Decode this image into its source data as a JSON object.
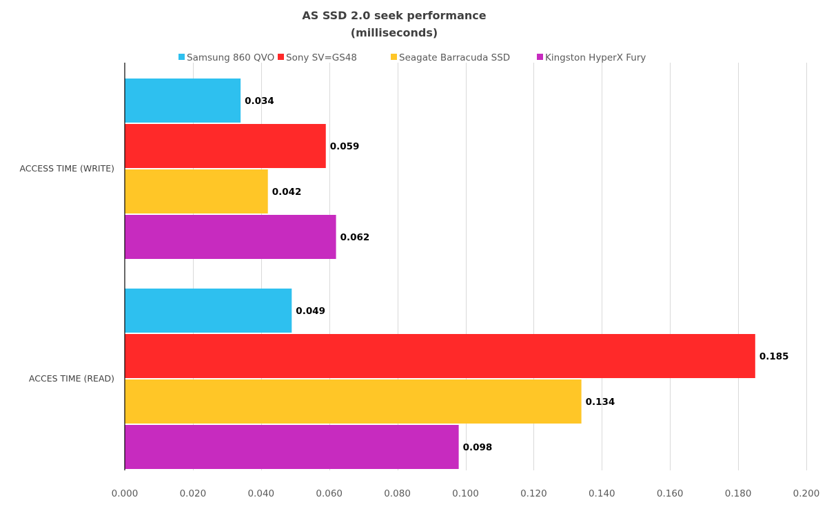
{
  "chart_data": {
    "type": "bar",
    "orientation": "horizontal",
    "title_lines": [
      "AS SSD 2.0 seek performance",
      "(milliseconds)"
    ],
    "categories": [
      "ACCESS TIME (WRITE)",
      "ACCES TIME (READ)"
    ],
    "series": [
      {
        "name": "Samsung 860 QVO",
        "color": "#2ec0ef",
        "values": [
          0.034,
          0.049
        ],
        "labels": [
          "0.034",
          "0.049"
        ]
      },
      {
        "name": "Sony SV=GS48",
        "color": "#ff2929",
        "values": [
          0.059,
          0.185
        ],
        "labels": [
          "0.059",
          "0.185"
        ]
      },
      {
        "name": "Seagate Barracuda SSD",
        "color": "#ffc627",
        "values": [
          0.042,
          0.134
        ],
        "labels": [
          "0.042",
          "0.134"
        ]
      },
      {
        "name": "Kingston HyperX Fury",
        "color": "#c72bbf",
        "values": [
          0.062,
          0.098
        ],
        "labels": [
          "0.062",
          "0.098"
        ]
      }
    ],
    "xlim": [
      0,
      0.2
    ],
    "x_ticks": [
      "0.000",
      "0.020",
      "0.040",
      "0.060",
      "0.080",
      "0.100",
      "0.120",
      "0.140",
      "0.160",
      "0.180",
      "0.200"
    ],
    "x_tick_values": [
      0,
      0.02,
      0.04,
      0.06,
      0.08,
      0.1,
      0.12,
      0.14,
      0.16,
      0.18,
      0.2
    ],
    "grid": true,
    "legend_position": "top"
  }
}
